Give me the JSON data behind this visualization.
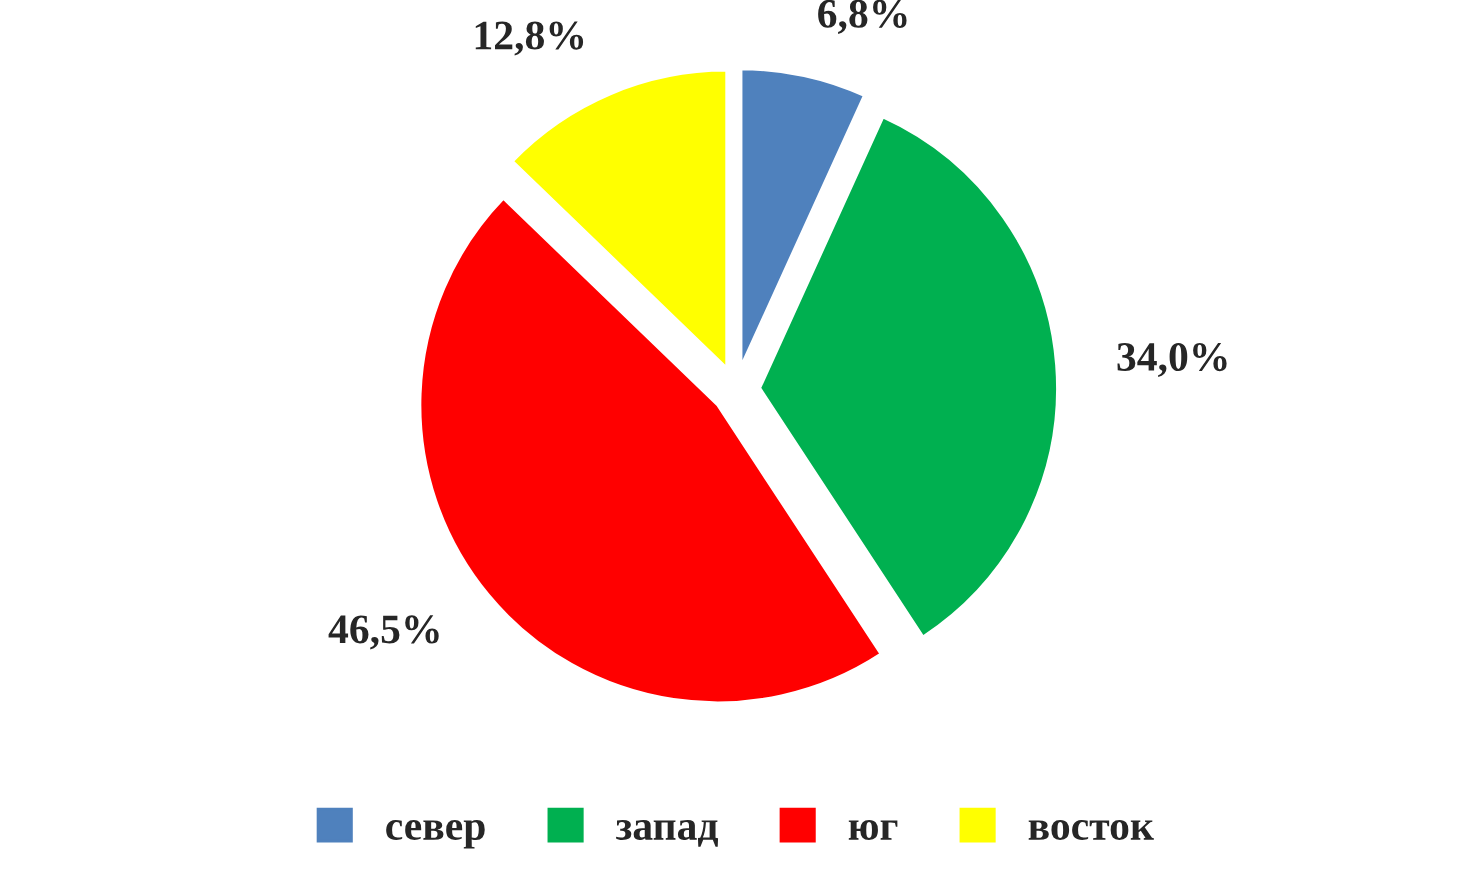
{
  "chart_data": {
    "type": "pie",
    "categories": [
      "север",
      "запад",
      "юг",
      "восток"
    ],
    "values": [
      6.8,
      34.0,
      46.5,
      12.8
    ],
    "value_labels": [
      "6,8%",
      "34,0%",
      "46,5%",
      "12,8%"
    ],
    "colors": [
      "#4f81bd",
      "#00b050",
      "#ff0000",
      "#ffff00"
    ],
    "legend": "bottom"
  }
}
